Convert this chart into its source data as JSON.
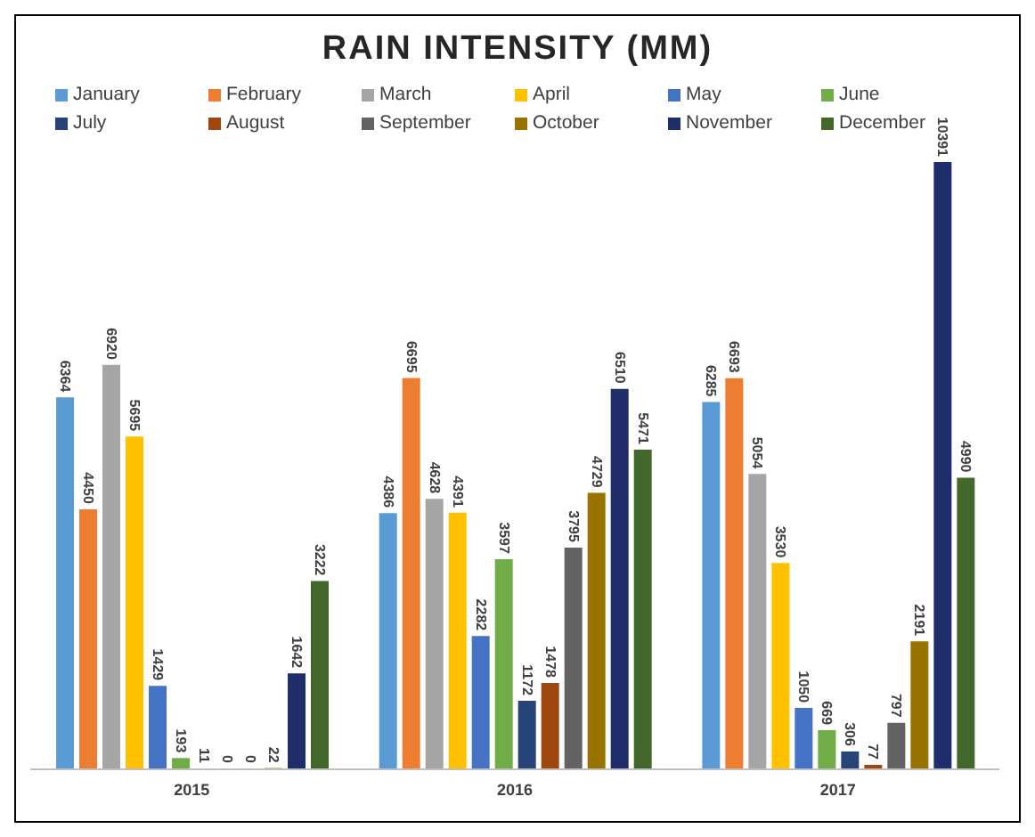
{
  "chart_data": {
    "type": "bar",
    "title": "RAIN INTENSITY (MM)",
    "categories": [
      "2015",
      "2016",
      "2017"
    ],
    "data_labels": true,
    "grid": false,
    "legend": "top",
    "series": [
      {
        "name": "January",
        "color": "#5b9bd5",
        "values": [
          6364,
          4386,
          6285
        ]
      },
      {
        "name": "February",
        "color": "#ed7d31",
        "values": [
          4450,
          6695,
          6693
        ]
      },
      {
        "name": "March",
        "color": "#a5a5a5",
        "values": [
          6920,
          4628,
          5054
        ]
      },
      {
        "name": "April",
        "color": "#ffc000",
        "values": [
          5695,
          4391,
          3530
        ]
      },
      {
        "name": "May",
        "color": "#4472c4",
        "values": [
          1429,
          2282,
          1050
        ]
      },
      {
        "name": "June",
        "color": "#70ad47",
        "values": [
          193,
          3597,
          669
        ]
      },
      {
        "name": "July",
        "color": "#264478",
        "values": [
          11,
          1172,
          306
        ]
      },
      {
        "name": "August",
        "color": "#9e480e",
        "values": [
          0,
          1478,
          77
        ]
      },
      {
        "name": "September",
        "color": "#636363",
        "values": [
          0,
          3795,
          797
        ]
      },
      {
        "name": "October",
        "color": "#997300",
        "values": [
          22,
          4729,
          2191
        ]
      },
      {
        "name": "November",
        "color": "#1f2d6b",
        "values": [
          1642,
          6510,
          10391
        ]
      },
      {
        "name": "December",
        "color": "#43682b",
        "values": [
          3222,
          5471,
          4990
        ]
      }
    ]
  }
}
